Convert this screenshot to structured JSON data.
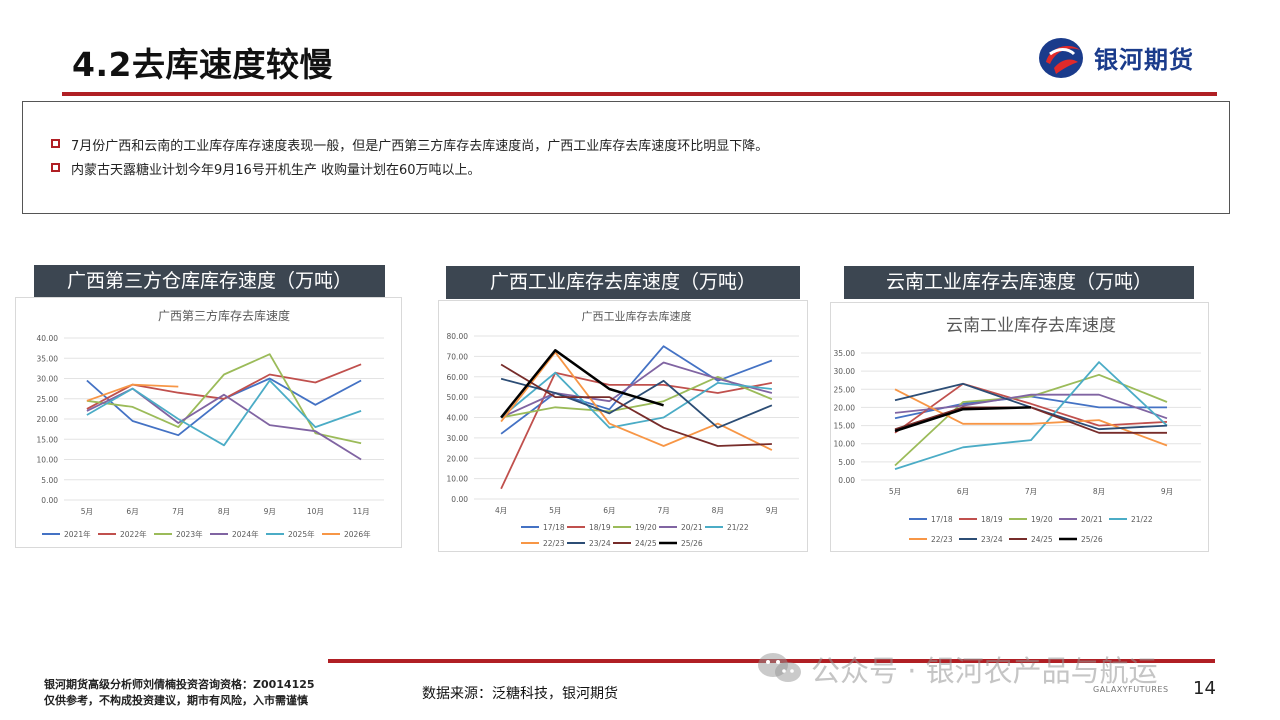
{
  "header": {
    "title": "4.2去库速度较慢",
    "logo_text": "银河期货"
  },
  "summary": {
    "bullets": [
      "7月份广西和云南的工业库存库存速度表现一般，但是广西第三方库存去库速度尚，广西工业库存去库速度环比明显下降。",
      "内蒙古天露糖业计划今年9月16号开机生产 收购量计划在60万吨以上。"
    ]
  },
  "colors": {
    "accent_red": "#b01f24",
    "header_bg": "#3c4651",
    "logo_blue": "#1a3b8b"
  },
  "chart_data": [
    {
      "type": "line",
      "header": "广西第三方仓库库存速度（万吨）",
      "title": "广西第三方库存去库速度",
      "categories": [
        "5月",
        "6月",
        "7月",
        "8月",
        "9月",
        "10月",
        "11月"
      ],
      "ylim": [
        0,
        40
      ],
      "yticks": [
        "0.00",
        "5.00",
        "10.00",
        "15.00",
        "20.00",
        "25.00",
        "30.00",
        "35.00",
        "40.00"
      ],
      "legend_position": "bottom",
      "series": [
        {
          "name": "2021年",
          "color": "#4472c4",
          "values": [
            29.5,
            19.5,
            16,
            25,
            30,
            23.5,
            29.5
          ]
        },
        {
          "name": "2022年",
          "color": "#c0504d",
          "values": [
            22.5,
            28.5,
            26.5,
            25,
            31,
            29,
            33.5
          ]
        },
        {
          "name": "2023年",
          "color": "#9bbb59",
          "values": [
            24.5,
            23,
            18,
            31,
            36,
            16.5,
            14
          ]
        },
        {
          "name": "2024年",
          "color": "#8064a2",
          "values": [
            22,
            27.5,
            19,
            26,
            18.5,
            17,
            10
          ]
        },
        {
          "name": "2025年",
          "color": "#4bacc6",
          "values": [
            21,
            27.5,
            20,
            13.5,
            29.5,
            18,
            22
          ]
        },
        {
          "name": "2026年",
          "color": "#f79646",
          "values": [
            24.5,
            28.5,
            28,
            null,
            null,
            null,
            null
          ]
        }
      ]
    },
    {
      "type": "line",
      "header": "广西工业库存去库速度（万吨）",
      "title": "广西工业库存去库速度",
      "categories": [
        "4月",
        "5月",
        "6月",
        "7月",
        "8月",
        "9月"
      ],
      "ylim": [
        0,
        80
      ],
      "yticks": [
        "0.00",
        "10.00",
        "20.00",
        "30.00",
        "40.00",
        "50.00",
        "60.00",
        "70.00",
        "80.00"
      ],
      "legend_position": "bottom",
      "series": [
        {
          "name": "17/18",
          "color": "#4472c4",
          "values": [
            32,
            52,
            44,
            75,
            58,
            68
          ]
        },
        {
          "name": "18/19",
          "color": "#c0504d",
          "values": [
            5,
            62,
            56,
            56,
            52,
            57
          ]
        },
        {
          "name": "19/20",
          "color": "#9bbb59",
          "values": [
            40,
            45,
            43,
            48,
            60,
            49
          ]
        },
        {
          "name": "20/21",
          "color": "#8064a2",
          "values": [
            40,
            52,
            48,
            67,
            59,
            52
          ]
        },
        {
          "name": "21/22",
          "color": "#4bacc6",
          "values": [
            40,
            62,
            35,
            40,
            57,
            54
          ]
        },
        {
          "name": "22/23",
          "color": "#f79646",
          "values": [
            38,
            72,
            37,
            26,
            37,
            24
          ]
        },
        {
          "name": "23/24",
          "color": "#2c4d75",
          "values": [
            59,
            52,
            42,
            58,
            35,
            46
          ]
        },
        {
          "name": "24/25",
          "color": "#772c2a",
          "values": [
            66,
            50,
            50,
            35,
            26,
            27
          ]
        },
        {
          "name": "25/26",
          "color": "#000000",
          "values": [
            40,
            73,
            54,
            46,
            null,
            null
          ]
        }
      ]
    },
    {
      "type": "line",
      "header": "云南工业库存去库速度（万吨）",
      "title": "云南工业库存去库速度",
      "categories": [
        "5月",
        "6月",
        "7月",
        "8月",
        "9月"
      ],
      "ylim": [
        0,
        35
      ],
      "yticks": [
        "0.00",
        "5.00",
        "10.00",
        "15.00",
        "20.00",
        "25.00",
        "30.00",
        "35.00"
      ],
      "legend_position": "bottom",
      "series": [
        {
          "name": "17/18",
          "color": "#4472c4",
          "values": [
            17,
            21,
            23,
            20,
            20
          ]
        },
        {
          "name": "18/19",
          "color": "#c0504d",
          "values": [
            13,
            26.5,
            21,
            15,
            16
          ]
        },
        {
          "name": "19/20",
          "color": "#9bbb59",
          "values": [
            4,
            21.5,
            23,
            29,
            21.5
          ]
        },
        {
          "name": "20/21",
          "color": "#8064a2",
          "values": [
            18.5,
            20.5,
            23.5,
            23.5,
            17
          ]
        },
        {
          "name": "21/22",
          "color": "#4bacc6",
          "values": [
            3,
            9,
            11,
            32.5,
            15
          ]
        },
        {
          "name": "22/23",
          "color": "#f79646",
          "values": [
            25,
            15.5,
            15.5,
            16.5,
            9.5
          ]
        },
        {
          "name": "23/24",
          "color": "#2c4d75",
          "values": [
            22,
            26.5,
            20,
            14,
            15
          ]
        },
        {
          "name": "24/25",
          "color": "#772c2a",
          "values": [
            14,
            20,
            20,
            13,
            13
          ]
        },
        {
          "name": "25/26",
          "color": "#000000",
          "values": [
            13.5,
            19.5,
            20,
            null,
            null
          ]
        }
      ]
    }
  ],
  "footer": {
    "disclaimer_line1": "银河期货高级分析师刘倩楠投资咨询资格：Z0014125",
    "disclaimer_line2": "仅供参考，不构成投资建议，期市有风险，入市需谨慎",
    "source": "数据来源：泛糖科技，银河期货",
    "watermark": "公众号 · 银河农产品与航运",
    "galaxy_text": "GALAXYFUTURES",
    "page_number": "14"
  }
}
